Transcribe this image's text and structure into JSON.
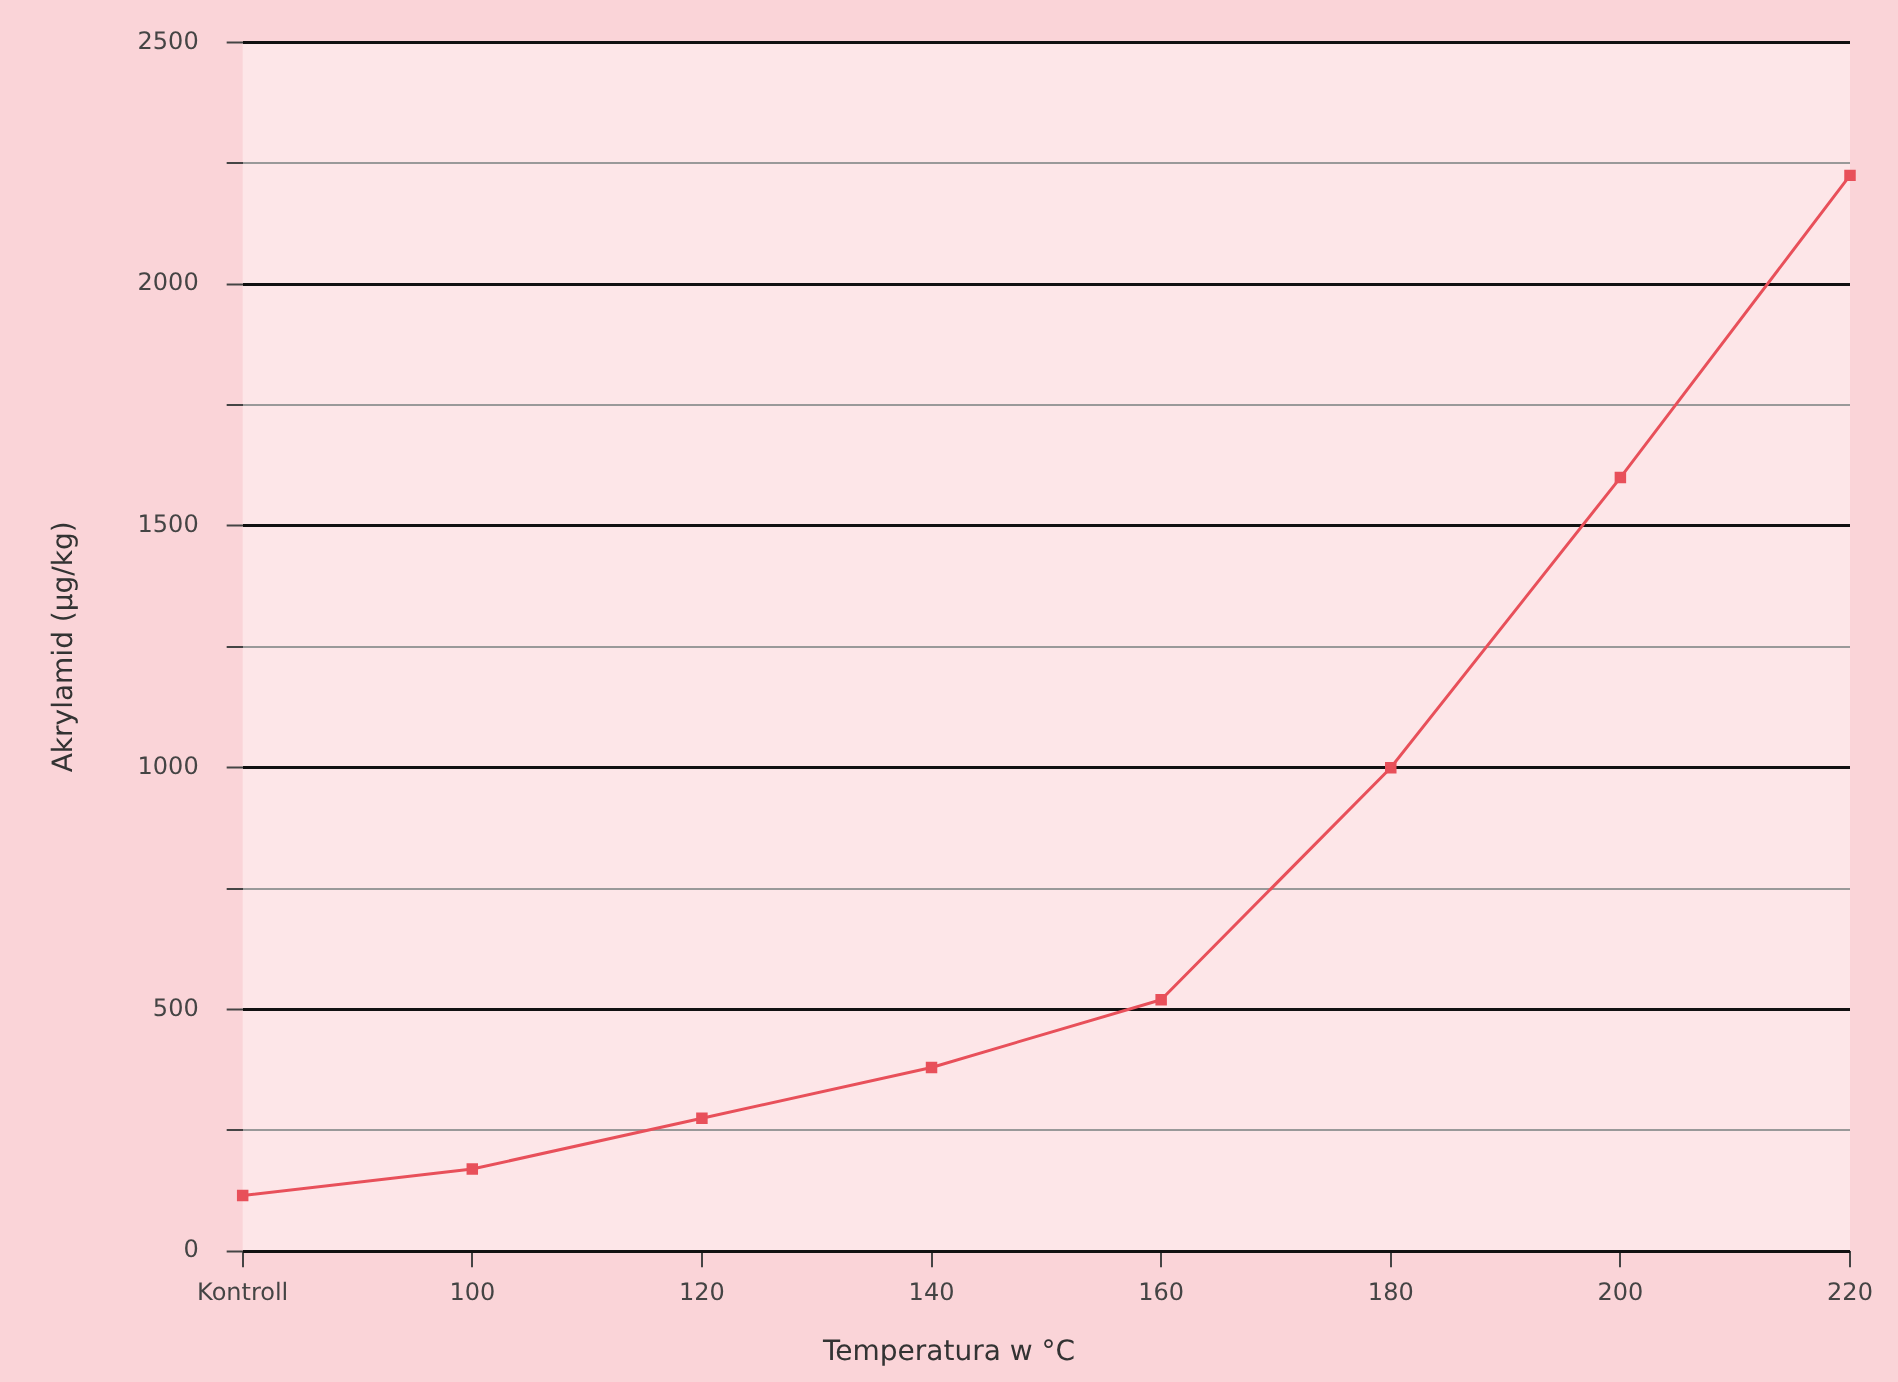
{
  "chart_data": {
    "type": "line",
    "xlabel": "Temperatura w °C",
    "ylabel": "Akrylamid (µg/kg)",
    "categories": [
      "Kontroll",
      "100",
      "120",
      "140",
      "160",
      "180",
      "200",
      "220"
    ],
    "series": [
      {
        "color": "#e8505a",
        "values": [
          115,
          170,
          275,
          380,
          520,
          1000,
          1600,
          2225
        ]
      }
    ],
    "ylim": [
      0,
      2500
    ],
    "yticks": [
      0,
      {
        "value": 250,
        "label": null
      },
      500,
      {
        "value": 750,
        "label": null
      },
      1000,
      {
        "value": 1250,
        "label": null
      },
      1500,
      {
        "value": 1750,
        "label": null
      },
      2000,
      {
        "value": 2250,
        "label": null
      },
      2500
    ],
    "grid": "y",
    "legend": false,
    "marker": "square",
    "line_style": "solid"
  }
}
